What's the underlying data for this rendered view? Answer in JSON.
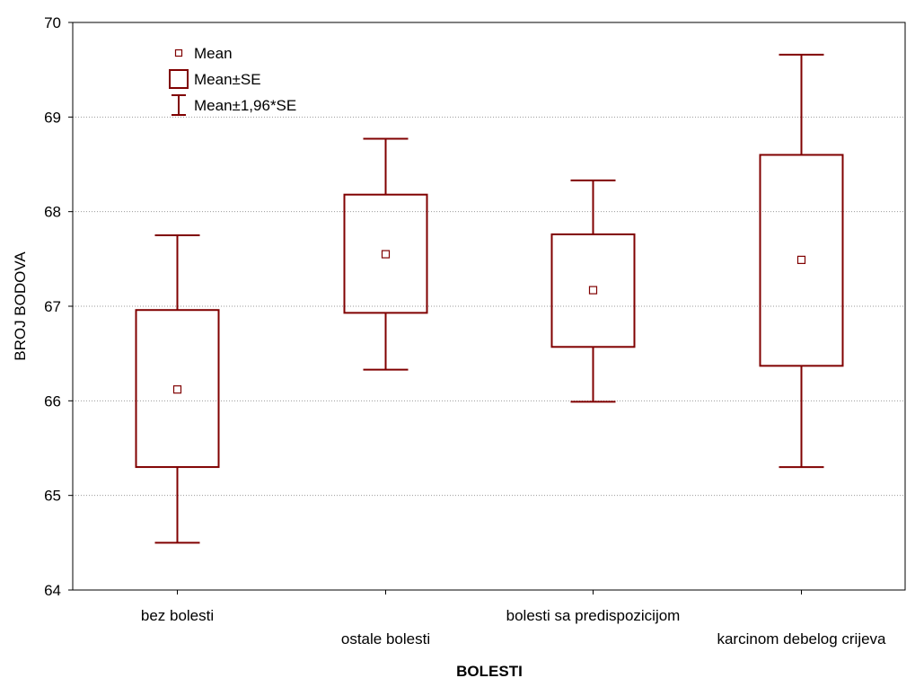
{
  "colors": {
    "series": "#800000",
    "grid": "#9a9a9a",
    "axis": "#000000",
    "background": "#ffffff"
  },
  "chart_data": {
    "type": "box",
    "title": "",
    "xlabel": "BOLESTI",
    "ylabel": "BROJ BODOVA",
    "ylim": [
      64,
      70
    ],
    "yticks": [
      64,
      65,
      66,
      67,
      68,
      69,
      70
    ],
    "grid": true,
    "legend_position": "top-left",
    "legend": [
      {
        "symbol": "point",
        "label": "Mean"
      },
      {
        "symbol": "box",
        "label": "Mean±SE"
      },
      {
        "symbol": "whisker",
        "label": "Mean±1,96*SE"
      }
    ],
    "categories": [
      "bez bolesti",
      "ostale bolesti",
      "bolesti sa predispozicijom",
      "karcinom debelog crijeva"
    ],
    "series": [
      {
        "category": "bez bolesti",
        "mean": 66.12,
        "se_low": 65.3,
        "se_high": 66.96,
        "ci_low": 64.5,
        "ci_high": 67.75
      },
      {
        "category": "ostale bolesti",
        "mean": 67.55,
        "se_low": 66.93,
        "se_high": 68.18,
        "ci_low": 66.33,
        "ci_high": 68.77
      },
      {
        "category": "bolesti sa predispozicijom",
        "mean": 67.17,
        "se_low": 66.57,
        "se_high": 67.76,
        "ci_low": 65.99,
        "ci_high": 68.33
      },
      {
        "category": "karcinom debelog crijeva",
        "mean": 67.49,
        "se_low": 66.37,
        "se_high": 68.6,
        "ci_low": 65.3,
        "ci_high": 69.66
      }
    ]
  }
}
